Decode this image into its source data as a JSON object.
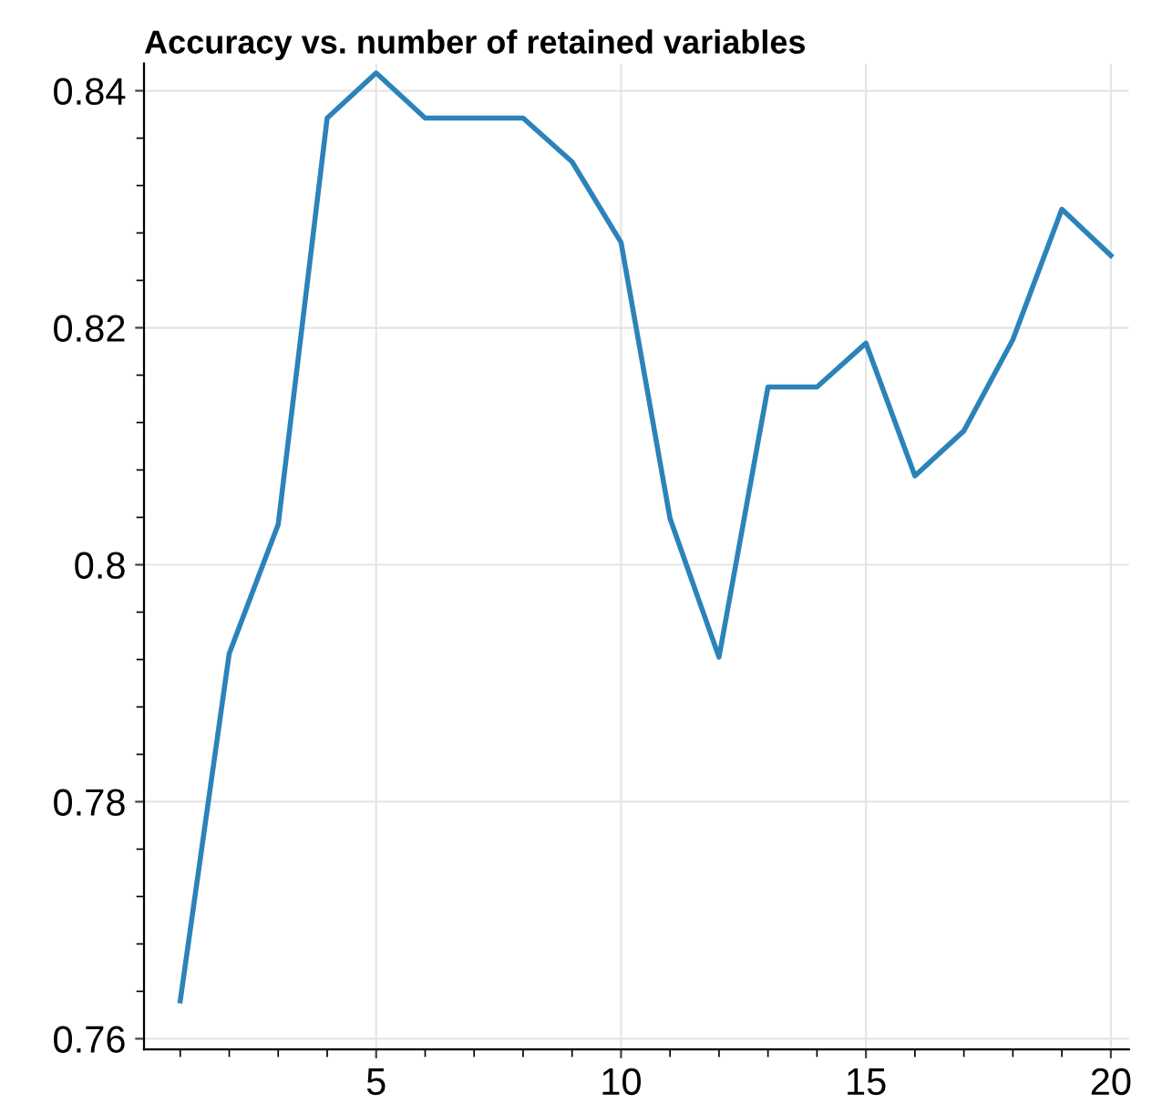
{
  "chart_data": {
    "type": "line",
    "title": "Accuracy vs. number of retained variables",
    "x": [
      1,
      2,
      3,
      4,
      5,
      6,
      7,
      8,
      9,
      10,
      11,
      12,
      13,
      14,
      15,
      16,
      17,
      18,
      19,
      20
    ],
    "series": [
      {
        "color": "#2b83ba",
        "values": [
          0.7632,
          0.7925,
          0.8034,
          0.8377,
          0.8415,
          0.8377,
          0.8377,
          0.8377,
          0.834,
          0.8272,
          0.8039,
          0.7922,
          0.815,
          0.815,
          0.8187,
          0.8075,
          0.8113,
          0.819,
          0.83,
          0.8261
        ]
      }
    ],
    "xlim": [
      0.26,
      20.37
    ],
    "ylim": [
      0.7591,
      0.8423
    ],
    "xticks": [
      5,
      10,
      15,
      20
    ],
    "yticks": [
      0.76,
      0.78,
      0.8,
      0.82,
      0.84
    ],
    "grid": true,
    "marker": "none",
    "line_style": "solid",
    "legend": false
  }
}
